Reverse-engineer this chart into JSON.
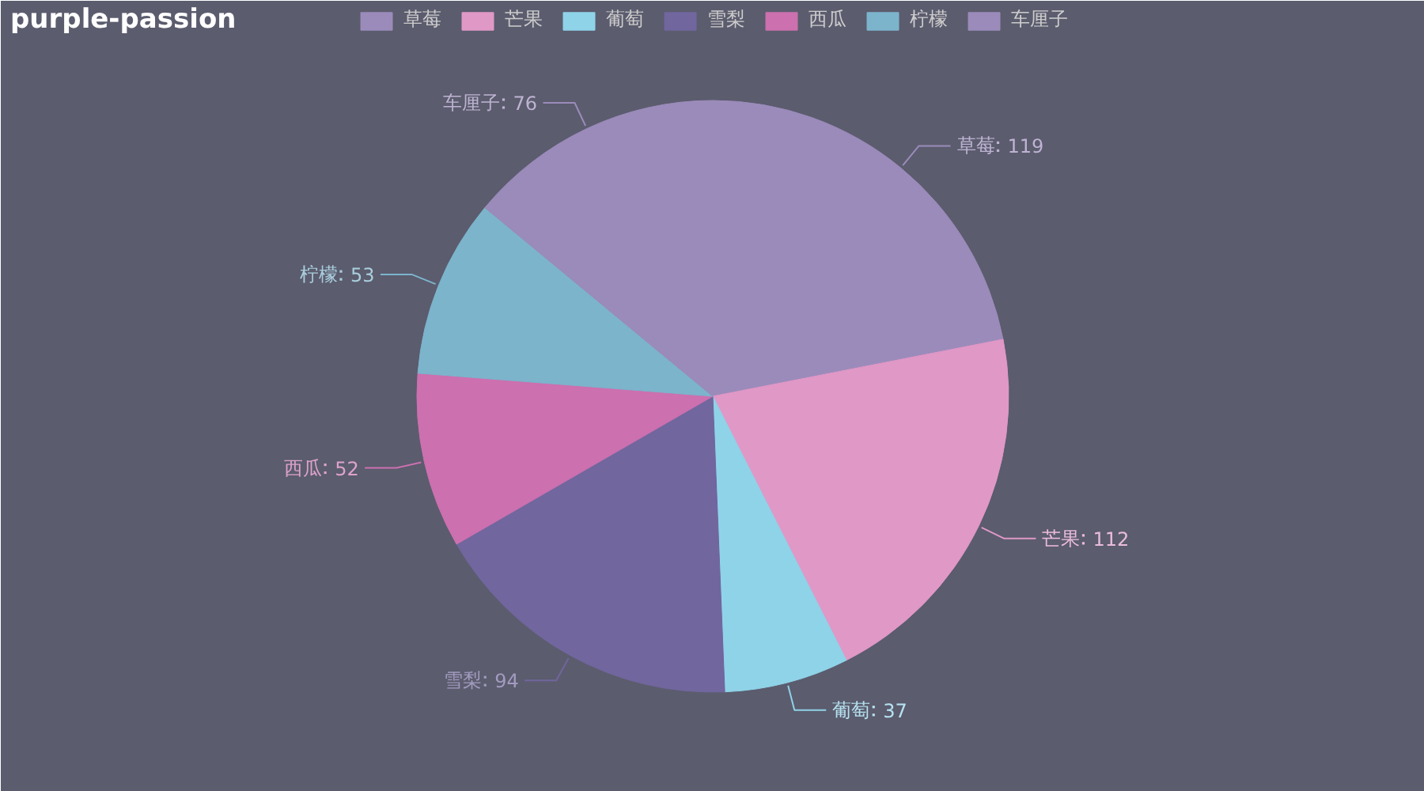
{
  "chart_data": {
    "type": "pie",
    "title": "purple-passion",
    "categories": [
      "草莓",
      "芒果",
      "葡萄",
      "雪梨",
      "西瓜",
      "柠檬",
      "车厘子"
    ],
    "values": [
      119,
      112,
      37,
      94,
      52,
      53,
      76
    ],
    "colors": [
      "#9b8bba",
      "#e098c7",
      "#8fd3e8",
      "#71669e",
      "#cc70af",
      "#7cb4cc",
      "#9b8bba"
    ],
    "data_labels": true,
    "legend": "top"
  }
}
